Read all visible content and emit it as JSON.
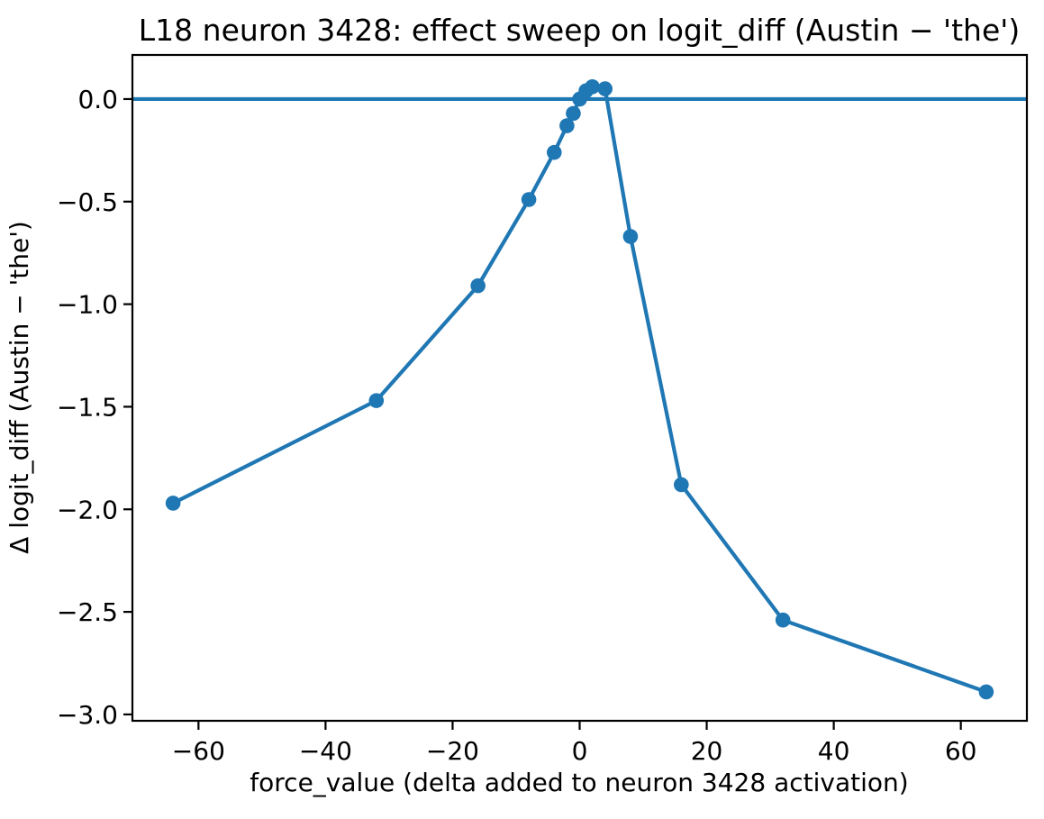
{
  "chart_data": {
    "type": "line",
    "title": "L18 neuron 3428: effect sweep on logit_diff (Austin − 'the')",
    "xlabel": "force_value (delta added to neuron 3428 activation)",
    "ylabel": "Δ logit_diff (Austin − 'the')",
    "series": [
      {
        "name": "effect-sweep",
        "x": [
          -64,
          -32,
          -16,
          -8,
          -4,
          -2,
          -1,
          0,
          1,
          2,
          4,
          8,
          16,
          32,
          64
        ],
        "y": [
          -1.97,
          -1.47,
          -0.91,
          -0.49,
          -0.26,
          -0.13,
          -0.07,
          0.0,
          0.04,
          0.06,
          0.05,
          -0.67,
          -1.88,
          -2.54,
          -2.89
        ]
      }
    ],
    "hline_y": 0,
    "xlim": [
      -70.4,
      70.4
    ],
    "ylim": [
      -3.031,
      0.215
    ],
    "xticks": {
      "values": [
        -60,
        -40,
        -20,
        0,
        20,
        40,
        60
      ],
      "labels": [
        "−60",
        "−40",
        "−20",
        "0",
        "20",
        "40",
        "60"
      ]
    },
    "yticks": {
      "values": [
        0.0,
        -0.5,
        -1.0,
        -1.5,
        -2.0,
        -2.5,
        -3.0
      ],
      "labels": [
        "0.0",
        "−0.5",
        "−1.0",
        "−1.5",
        "−2.0",
        "−2.5",
        "−3.0"
      ]
    },
    "grid": false,
    "legend": false,
    "line_color": "#1f77b4",
    "hline_color": "#1f77b4",
    "spine_color": "#000000",
    "background_color": "#ffffff",
    "marker": "o"
  }
}
